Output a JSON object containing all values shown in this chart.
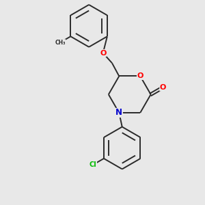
{
  "background_color": "#e8e8e8",
  "bond_color": "#2a2a2a",
  "atom_colors": {
    "O": "#ff0000",
    "N": "#0000cc",
    "Cl": "#00bb00",
    "C": "#2a2a2a"
  },
  "figsize": [
    3.0,
    3.0
  ],
  "dpi": 100
}
